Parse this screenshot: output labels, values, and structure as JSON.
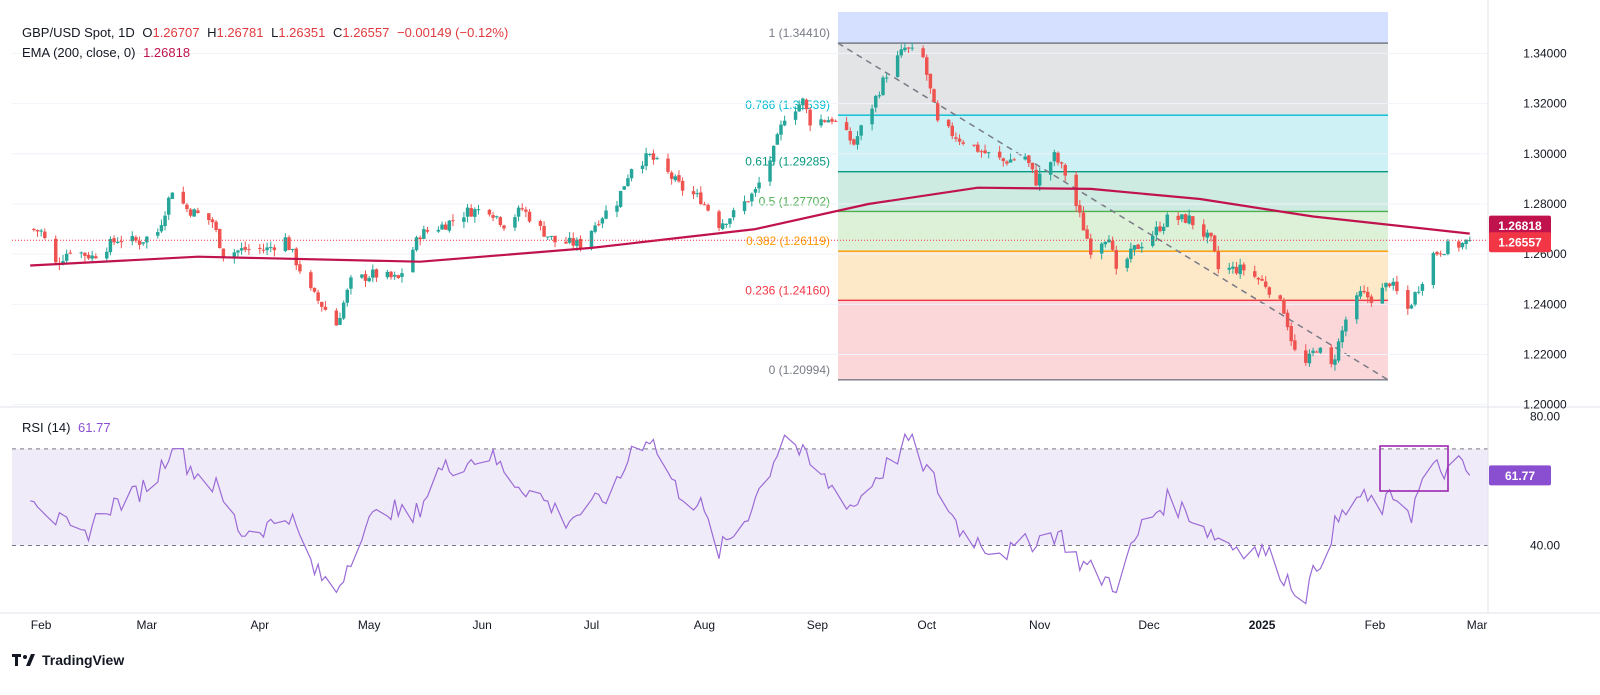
{
  "header": {
    "symbol": "GBP/USD Spot, 1D",
    "o_label": "O",
    "o": "1.26707",
    "h_label": "H",
    "h": "1.26781",
    "l_label": "L",
    "l": "1.26351",
    "c_label": "C",
    "c": "1.26557",
    "change": "−0.00149 (−0.12%)",
    "ema_label": "EMA (200, close, 0)",
    "ema_value": "1.26818",
    "rsi_label": "RSI (14)",
    "rsi_value": "61.77"
  },
  "brand": "TradingView",
  "colors": {
    "up": "#26a69a",
    "down": "#ef5350",
    "ema": "#c0134e",
    "rsi": "#9b6bd6",
    "price_label_bg": "#f23645",
    "ema_label_bg": "#c0134e",
    "rsi_label_bg": "#8a4fd0"
  },
  "chart_data": [
    {
      "type": "candlestick",
      "title": "GBP/USD Spot, 1D",
      "x_tick_labels": [
        "Feb",
        "Mar",
        "Apr",
        "May",
        "Jun",
        "Jul",
        "Aug",
        "Sep",
        "Oct",
        "Nov",
        "Dec",
        "2025",
        "Feb",
        "Mar"
      ],
      "y_tick_labels": [
        "1.34000",
        "1.32000",
        "1.30000",
        "1.28000",
        "1.26000",
        "1.24000",
        "1.22000",
        "1.20000"
      ],
      "ylim": [
        1.1995,
        1.3565
      ],
      "last_price": 1.26557,
      "last_price_label": "1.26557",
      "ema_label": "1.26818",
      "fibonacci": {
        "from": 1.3441,
        "to": 1.20994,
        "levels": [
          {
            "ratio": "1",
            "value": 1.3441,
            "label": "1 (1.34410)",
            "color": "#787b86",
            "fill": "#d5dfff"
          },
          {
            "ratio": "0.786",
            "value": 1.31539,
            "label": "0.786 (1.31539)",
            "color": "#00bcd4",
            "fill": "#e3e4e6"
          },
          {
            "ratio": "0.618",
            "value": 1.29285,
            "label": "0.618 (1.29285)",
            "color": "#089981",
            "fill": "#cdf1f4"
          },
          {
            "ratio": "0.5",
            "value": 1.27702,
            "label": "0.5 (1.27702)",
            "color": "#4caf50",
            "fill": "#cdebe1"
          },
          {
            "ratio": "0.382",
            "value": 1.26119,
            "label": "0.382 (1.26119)",
            "color": "#ff9800",
            "fill": "#ddf0d8"
          },
          {
            "ratio": "0.236",
            "value": 1.2416,
            "label": "0.236 (1.24160)",
            "color": "#f23645",
            "fill": "#fde8c8"
          },
          {
            "ratio": "0",
            "value": 1.20994,
            "label": "0 (1.20994)",
            "color": "#787b86",
            "fill": "#fbd7da"
          }
        ]
      },
      "close_path": [
        [
          "2024-01-29",
          1.27
        ],
        [
          "2024-02-01",
          1.269
        ],
        [
          "2024-02-05",
          1.256
        ],
        [
          "2024-02-09",
          1.262
        ],
        [
          "2024-02-15",
          1.259
        ],
        [
          "2024-02-22",
          1.266
        ],
        [
          "2024-02-28",
          1.265
        ],
        [
          "2024-03-04",
          1.269
        ],
        [
          "2024-03-08",
          1.286
        ],
        [
          "2024-03-12",
          1.278
        ],
        [
          "2024-03-19",
          1.273
        ],
        [
          "2024-03-22",
          1.26
        ],
        [
          "2024-03-28",
          1.262
        ],
        [
          "2024-04-03",
          1.262
        ],
        [
          "2024-04-08",
          1.266
        ],
        [
          "2024-04-15",
          1.245
        ],
        [
          "2024-04-19",
          1.238
        ],
        [
          "2024-04-22",
          1.232
        ],
        [
          "2024-04-26",
          1.249
        ],
        [
          "2024-05-02",
          1.252
        ],
        [
          "2024-05-09",
          1.25
        ],
        [
          "2024-05-15",
          1.268
        ],
        [
          "2024-05-22",
          1.272
        ],
        [
          "2024-05-28",
          1.277
        ],
        [
          "2024-06-03",
          1.278
        ],
        [
          "2024-06-07",
          1.272
        ],
        [
          "2024-06-12",
          1.278
        ],
        [
          "2024-06-17",
          1.27
        ],
        [
          "2024-06-21",
          1.265
        ],
        [
          "2024-06-28",
          1.264
        ],
        [
          "2024-07-03",
          1.274
        ],
        [
          "2024-07-08",
          1.281
        ],
        [
          "2024-07-12",
          1.295
        ],
        [
          "2024-07-17",
          1.299
        ],
        [
          "2024-07-22",
          1.292
        ],
        [
          "2024-07-26",
          1.286
        ],
        [
          "2024-07-31",
          1.282
        ],
        [
          "2024-08-05",
          1.272
        ],
        [
          "2024-08-09",
          1.276
        ],
        [
          "2024-08-15",
          1.285
        ],
        [
          "2024-08-20",
          1.301
        ],
        [
          "2024-08-23",
          1.315
        ],
        [
          "2024-08-28",
          1.321
        ],
        [
          "2024-08-30",
          1.313
        ],
        [
          "2024-09-05",
          1.314
        ],
        [
          "2024-09-11",
          1.304
        ],
        [
          "2024-09-16",
          1.319
        ],
        [
          "2024-09-20",
          1.332
        ],
        [
          "2024-09-25",
          1.342
        ],
        [
          "2024-09-30",
          1.338
        ],
        [
          "2024-10-04",
          1.312
        ],
        [
          "2024-10-10",
          1.306
        ],
        [
          "2024-10-16",
          1.301
        ],
        [
          "2024-10-22",
          1.297
        ],
        [
          "2024-10-28",
          1.299
        ],
        [
          "2024-10-31",
          1.289
        ],
        [
          "2024-11-05",
          1.299
        ],
        [
          "2024-11-08",
          1.292
        ],
        [
          "2024-11-12",
          1.275
        ],
        [
          "2024-11-15",
          1.262
        ],
        [
          "2024-11-20",
          1.268
        ],
        [
          "2024-11-22",
          1.252
        ],
        [
          "2024-11-27",
          1.262
        ],
        [
          "2024-12-02",
          1.268
        ],
        [
          "2024-12-06",
          1.274
        ],
        [
          "2024-12-12",
          1.274
        ],
        [
          "2024-12-18",
          1.265
        ],
        [
          "2024-12-20",
          1.254
        ],
        [
          "2024-12-27",
          1.254
        ],
        [
          "2025-01-02",
          1.248
        ],
        [
          "2025-01-07",
          1.238
        ],
        [
          "2025-01-10",
          1.221
        ],
        [
          "2025-01-13",
          1.216
        ],
        [
          "2025-01-16",
          1.223
        ],
        [
          "2025-01-20",
          1.215
        ],
        [
          "2025-01-24",
          1.234
        ],
        [
          "2025-01-28",
          1.244
        ],
        [
          "2025-02-01",
          1.242
        ],
        [
          "2025-02-05",
          1.249
        ],
        [
          "2025-02-10",
          1.238
        ],
        [
          "2025-02-13",
          1.247
        ],
        [
          "2025-02-17",
          1.26
        ],
        [
          "2025-02-21",
          1.263
        ],
        [
          "2025-02-25",
          1.264
        ],
        [
          "2025-02-27",
          1.2656
        ]
      ],
      "ema_path": [
        [
          "2024-01-29",
          1.2555
        ],
        [
          "2024-03-15",
          1.259
        ],
        [
          "2024-05-15",
          1.257
        ],
        [
          "2024-07-01",
          1.2625
        ],
        [
          "2024-08-15",
          1.27
        ],
        [
          "2024-09-15",
          1.28
        ],
        [
          "2024-10-15",
          1.2865
        ],
        [
          "2024-11-15",
          1.286
        ],
        [
          "2024-12-15",
          1.282
        ],
        [
          "2025-01-15",
          1.275
        ],
        [
          "2025-02-27",
          1.2682
        ]
      ]
    },
    {
      "type": "line",
      "title": "RSI (14)",
      "y_tick_labels": [
        "80.00",
        "40.00"
      ],
      "overbought": 70,
      "oversold": 40,
      "ylim": [
        20,
        83
      ],
      "last_value": 61.77,
      "last_value_label": "61.77",
      "series": [
        {
          "points": [
            [
              "2024-01-29",
              57
            ],
            [
              "2024-02-05",
              48
            ],
            [
              "2024-02-12",
              42
            ],
            [
              "2024-02-19",
              52
            ],
            [
              "2024-02-26",
              55
            ],
            [
              "2024-03-04",
              62
            ],
            [
              "2024-03-08",
              72
            ],
            [
              "2024-03-13",
              64
            ],
            [
              "2024-03-20",
              58
            ],
            [
              "2024-03-27",
              44
            ],
            [
              "2024-04-03",
              46
            ],
            [
              "2024-04-09",
              50
            ],
            [
              "2024-04-16",
              32
            ],
            [
              "2024-04-22",
              26
            ],
            [
              "2024-04-29",
              45
            ],
            [
              "2024-05-06",
              52
            ],
            [
              "2024-05-13",
              48
            ],
            [
              "2024-05-20",
              63
            ],
            [
              "2024-05-27",
              66
            ],
            [
              "2024-06-03",
              68
            ],
            [
              "2024-06-10",
              60
            ],
            [
              "2024-06-17",
              55
            ],
            [
              "2024-06-24",
              48
            ],
            [
              "2024-07-01",
              52
            ],
            [
              "2024-07-08",
              58
            ],
            [
              "2024-07-12",
              70
            ],
            [
              "2024-07-17",
              74
            ],
            [
              "2024-07-24",
              58
            ],
            [
              "2024-07-31",
              52
            ],
            [
              "2024-08-05",
              38
            ],
            [
              "2024-08-12",
              48
            ],
            [
              "2024-08-19",
              64
            ],
            [
              "2024-08-23",
              75
            ],
            [
              "2024-08-30",
              65
            ],
            [
              "2024-09-05",
              58
            ],
            [
              "2024-09-11",
              52
            ],
            [
              "2024-09-16",
              60
            ],
            [
              "2024-09-23",
              68
            ],
            [
              "2024-09-26",
              73
            ],
            [
              "2024-10-03",
              60
            ],
            [
              "2024-10-10",
              45
            ],
            [
              "2024-10-17",
              40
            ],
            [
              "2024-10-24",
              38
            ],
            [
              "2024-10-31",
              42
            ],
            [
              "2024-11-06",
              44
            ],
            [
              "2024-11-12",
              35
            ],
            [
              "2024-11-18",
              30
            ],
            [
              "2024-11-22",
              28
            ],
            [
              "2024-11-29",
              46
            ],
            [
              "2024-12-06",
              54
            ],
            [
              "2024-12-12",
              50
            ],
            [
              "2024-12-18",
              44
            ],
            [
              "2024-12-24",
              40
            ],
            [
              "2025-01-02",
              38
            ],
            [
              "2025-01-09",
              28
            ],
            [
              "2025-01-13",
              25
            ],
            [
              "2025-01-17",
              36
            ],
            [
              "2025-01-21",
              46
            ],
            [
              "2025-01-27",
              55
            ],
            [
              "2025-02-03",
              52
            ],
            [
              "2025-02-07",
              56
            ],
            [
              "2025-02-11",
              50
            ],
            [
              "2025-02-14",
              60
            ],
            [
              "2025-02-18",
              64
            ],
            [
              "2025-02-21",
              63
            ],
            [
              "2025-02-24",
              65
            ],
            [
              "2025-02-27",
              61.77
            ]
          ]
        }
      ]
    }
  ]
}
